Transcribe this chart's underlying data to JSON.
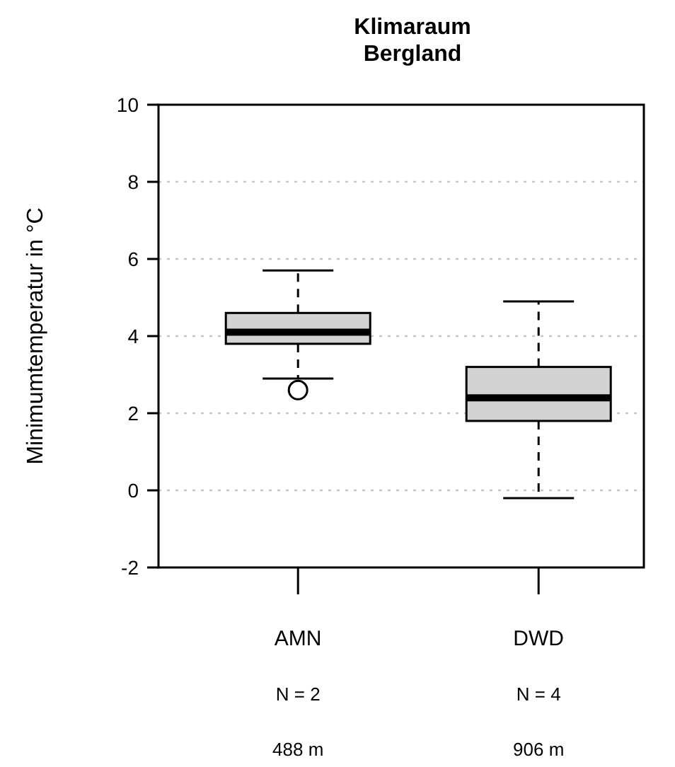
{
  "chart_data": {
    "type": "box",
    "title": "Klimaraum\nBergland",
    "ylabel": "Minimumtemperatur in °C",
    "categories": [
      "AMN\nN = 2\n488 m",
      "DWD\nN = 4\n906 m"
    ],
    "boxes": [
      {
        "low": 2.9,
        "q1": 3.8,
        "median": 4.1,
        "q3": 4.6,
        "high": 5.7,
        "outliers": [
          2.6
        ]
      },
      {
        "low": -0.2,
        "q1": 1.8,
        "median": 2.4,
        "q3": 3.2,
        "high": 4.9
      }
    ],
    "color": "#d3d3d3",
    "ylim": [
      -2,
      10
    ],
    "yticks": [
      -2,
      0,
      2,
      4,
      6,
      8,
      10
    ],
    "grid": "y"
  }
}
